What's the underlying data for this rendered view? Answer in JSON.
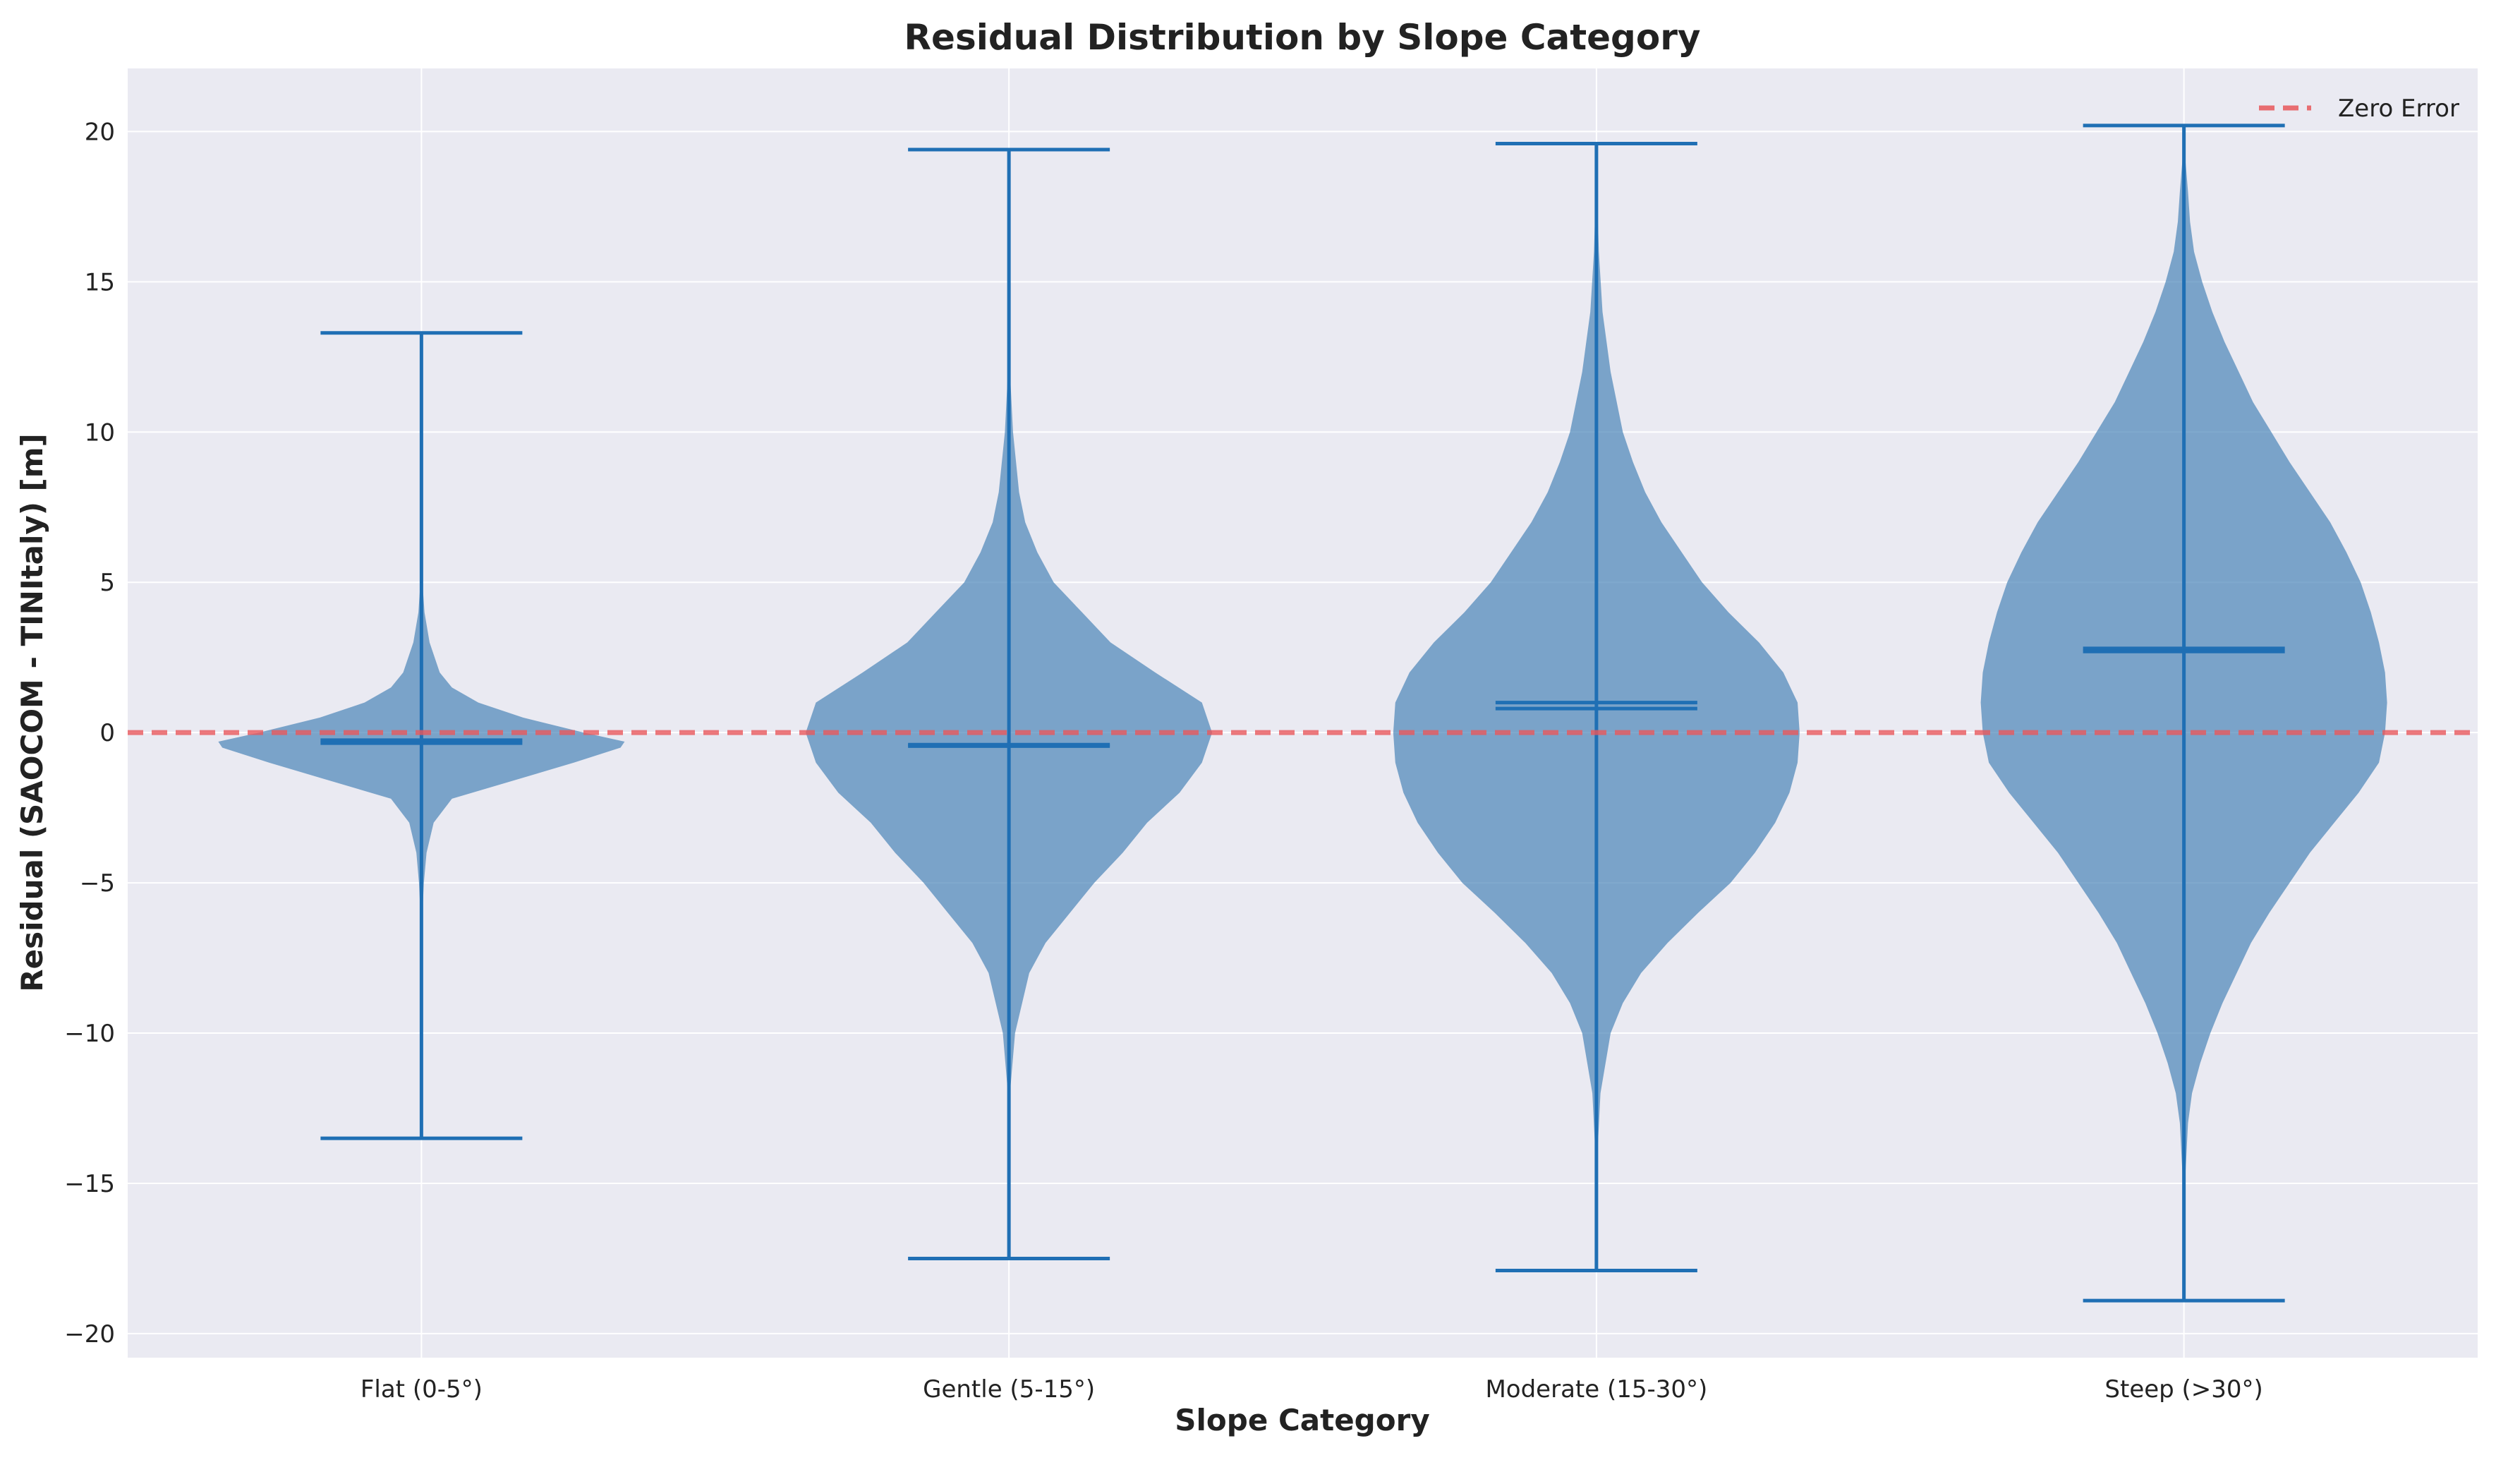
{
  "chart_data": {
    "type": "violin",
    "title": "Residual Distribution by Slope Category",
    "xlabel": "Slope Category",
    "ylabel": "Residual (SAOCOM - TINItaly) [m]",
    "ylim": [
      -20.8,
      22.1
    ],
    "yticks": [
      -20,
      -15,
      -10,
      -5,
      0,
      5,
      10,
      15,
      20
    ],
    "ytick_labels": [
      "−20",
      "−15",
      "−10",
      "−5",
      "0",
      "5",
      "10",
      "15",
      "20"
    ],
    "grid": true,
    "legend_position": "top-right",
    "colors": {
      "background": "#eaeaf2",
      "grid": "#ffffff",
      "violin_fill": "#4a84b8",
      "violin_edge": "#1f6fb4",
      "zero_line": "#e8575b"
    },
    "categories": [
      "Flat (0-5°)",
      "Gentle (5-15°)",
      "Moderate (15-30°)",
      "Steep (>30°)"
    ],
    "violins": [
      {
        "category": "Flat (0-5°)",
        "min": -13.5,
        "max": 13.3,
        "mean": -0.25,
        "median": -0.35,
        "density": [
          [
            -13.5,
            0
          ],
          [
            -6,
            0.005
          ],
          [
            -5,
            0.012
          ],
          [
            -4,
            0.025
          ],
          [
            -3,
            0.06
          ],
          [
            -2.2,
            0.15
          ],
          [
            -1.5,
            0.5
          ],
          [
            -1,
            0.75
          ],
          [
            -0.5,
            0.98
          ],
          [
            -0.3,
            1.0
          ],
          [
            0,
            0.8
          ],
          [
            0.5,
            0.5
          ],
          [
            1,
            0.28
          ],
          [
            1.5,
            0.15
          ],
          [
            2,
            0.09
          ],
          [
            3,
            0.04
          ],
          [
            4,
            0.015
          ],
          [
            5,
            0.005
          ],
          [
            6,
            0.002
          ],
          [
            13.3,
            0
          ]
        ]
      },
      {
        "category": "Gentle (5-15°)",
        "min": -17.5,
        "max": 19.4,
        "mean": -0.4,
        "median": -0.45,
        "density": [
          [
            -17.5,
            0
          ],
          [
            -12,
            0.005
          ],
          [
            -10,
            0.03
          ],
          [
            -8,
            0.1
          ],
          [
            -7,
            0.18
          ],
          [
            -6,
            0.3
          ],
          [
            -5,
            0.42
          ],
          [
            -4,
            0.56
          ],
          [
            -3,
            0.68
          ],
          [
            -2,
            0.84
          ],
          [
            -1,
            0.95
          ],
          [
            0,
            1.0
          ],
          [
            1,
            0.95
          ],
          [
            2,
            0.72
          ],
          [
            3,
            0.5
          ],
          [
            4,
            0.36
          ],
          [
            5,
            0.22
          ],
          [
            6,
            0.14
          ],
          [
            7,
            0.08
          ],
          [
            8,
            0.05
          ],
          [
            10,
            0.02
          ],
          [
            12,
            0.005
          ],
          [
            19.4,
            0
          ]
        ]
      },
      {
        "category": "Moderate (15-30°)",
        "min": -17.9,
        "max": 19.6,
        "mean": 1.0,
        "median": 0.8,
        "density": [
          [
            -17.9,
            0
          ],
          [
            -14,
            0.005
          ],
          [
            -12,
            0.02
          ],
          [
            -10,
            0.07
          ],
          [
            -9,
            0.13
          ],
          [
            -8,
            0.22
          ],
          [
            -7,
            0.35
          ],
          [
            -6,
            0.5
          ],
          [
            -5,
            0.66
          ],
          [
            -4,
            0.78
          ],
          [
            -3,
            0.88
          ],
          [
            -2,
            0.95
          ],
          [
            -1,
            0.99
          ],
          [
            0,
            1.0
          ],
          [
            1,
            0.99
          ],
          [
            2,
            0.92
          ],
          [
            3,
            0.8
          ],
          [
            4,
            0.65
          ],
          [
            5,
            0.52
          ],
          [
            6,
            0.42
          ],
          [
            7,
            0.32
          ],
          [
            8,
            0.24
          ],
          [
            9,
            0.18
          ],
          [
            10,
            0.13
          ],
          [
            12,
            0.07
          ],
          [
            14,
            0.03
          ],
          [
            16,
            0.012
          ],
          [
            18,
            0.003
          ],
          [
            19.6,
            0
          ]
        ]
      },
      {
        "category": "Steep (>30°)",
        "min": -18.9,
        "max": 20.2,
        "mean": 2.8,
        "median": 2.7,
        "density": [
          [
            -18.9,
            0
          ],
          [
            -15,
            0.005
          ],
          [
            -13,
            0.02
          ],
          [
            -12,
            0.04
          ],
          [
            -11,
            0.08
          ],
          [
            -10,
            0.13
          ],
          [
            -9,
            0.19
          ],
          [
            -8,
            0.26
          ],
          [
            -7,
            0.33
          ],
          [
            -6,
            0.42
          ],
          [
            -5,
            0.52
          ],
          [
            -4,
            0.62
          ],
          [
            -3,
            0.74
          ],
          [
            -2,
            0.86
          ],
          [
            -1,
            0.96
          ],
          [
            0,
            0.99
          ],
          [
            1,
            1.0
          ],
          [
            2,
            0.99
          ],
          [
            3,
            0.96
          ],
          [
            4,
            0.92
          ],
          [
            5,
            0.87
          ],
          [
            6,
            0.8
          ],
          [
            7,
            0.72
          ],
          [
            8,
            0.62
          ],
          [
            9,
            0.52
          ],
          [
            10,
            0.43
          ],
          [
            11,
            0.34
          ],
          [
            12,
            0.27
          ],
          [
            13,
            0.2
          ],
          [
            14,
            0.14
          ],
          [
            15,
            0.09
          ],
          [
            16,
            0.05
          ],
          [
            17,
            0.03
          ],
          [
            18,
            0.02
          ],
          [
            19,
            0.008
          ],
          [
            20.2,
            0
          ]
        ]
      }
    ],
    "legend": [
      {
        "label": "Zero Error",
        "style": "dashed"
      }
    ],
    "reference_line_y": 0
  }
}
